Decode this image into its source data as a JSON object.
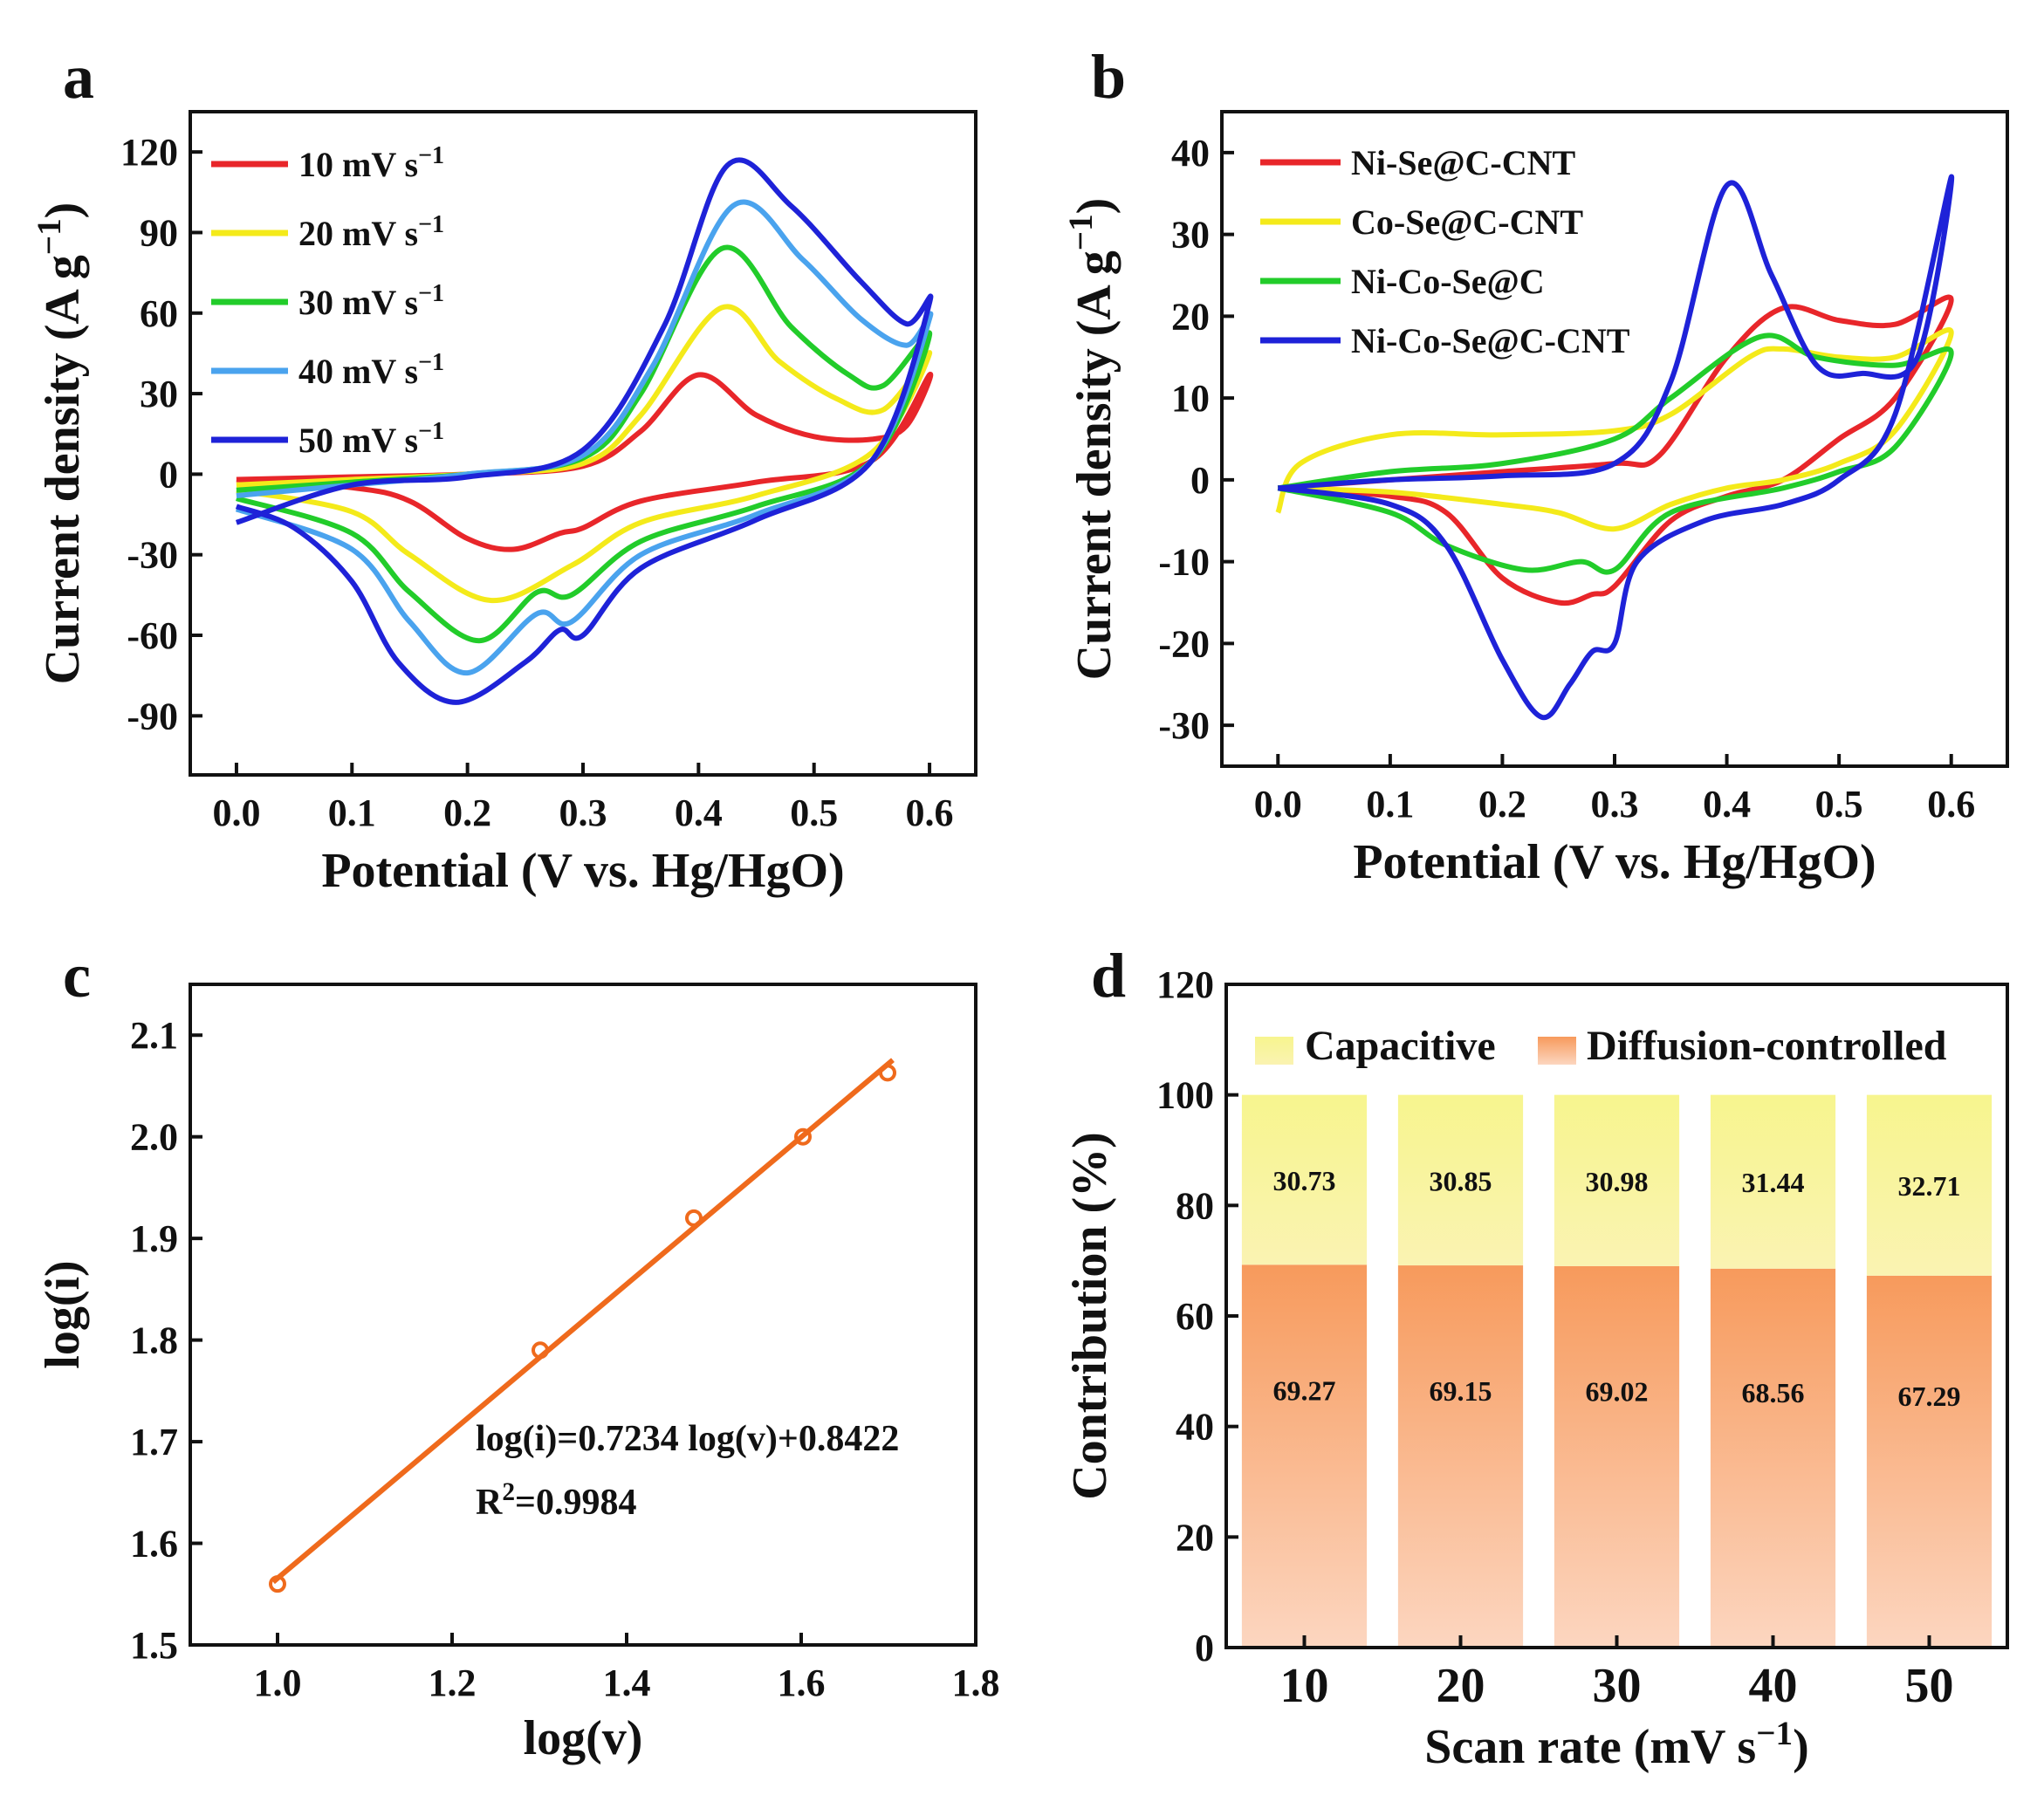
{
  "chart_data": [
    {
      "panel": "a",
      "type": "line",
      "xlabel": "Potential (V vs. Hg/HgO)",
      "ylabel_main": "Current density (A g",
      "ylabel_sup": "−1",
      "ylabel_close": ")",
      "xlim": [
        -0.04,
        0.64
      ],
      "ylim": [
        -112,
        135
      ],
      "xticks": [
        "0.0",
        "0.1",
        "0.2",
        "0.3",
        "0.4",
        "0.5",
        "0.6"
      ],
      "xtick_values": [
        0.0,
        0.1,
        0.2,
        0.3,
        0.4,
        0.5,
        0.6
      ],
      "yticks": [
        "120",
        "90",
        "60",
        "30",
        "0",
        "-30",
        "-60",
        "-90"
      ],
      "ytick_values": [
        120,
        90,
        60,
        30,
        0,
        -30,
        -60,
        -90
      ],
      "series": [
        {
          "name": "10 mV s",
          "sup": "−1",
          "color": "#e8262a",
          "upper": [
            [
              0,
              -2
            ],
            [
              0.1,
              -1
            ],
            [
              0.2,
              0
            ],
            [
              0.3,
              3
            ],
            [
              0.35,
              16
            ],
            [
              0.4,
              37
            ],
            [
              0.45,
              22
            ],
            [
              0.5,
              14
            ],
            [
              0.55,
              13
            ],
            [
              0.58,
              18
            ],
            [
              0.6,
              37
            ]
          ],
          "lower": [
            [
              0.6,
              37
            ],
            [
              0.55,
              5
            ],
            [
              0.45,
              -3
            ],
            [
              0.35,
              -10
            ],
            [
              0.3,
              -20
            ],
            [
              0.28,
              -22
            ],
            [
              0.24,
              -28
            ],
            [
              0.2,
              -24
            ],
            [
              0.15,
              -10
            ],
            [
              0.1,
              -5
            ],
            [
              0,
              -2
            ]
          ]
        },
        {
          "name": "20 mV s",
          "sup": "−1",
          "color": "#f4ea1a",
          "upper": [
            [
              0,
              -4
            ],
            [
              0.1,
              -2
            ],
            [
              0.2,
              0
            ],
            [
              0.3,
              4
            ],
            [
              0.35,
              22
            ],
            [
              0.42,
              62
            ],
            [
              0.47,
              42
            ],
            [
              0.52,
              28
            ],
            [
              0.56,
              24
            ],
            [
              0.6,
              45
            ]
          ],
          "lower": [
            [
              0.6,
              45
            ],
            [
              0.55,
              8
            ],
            [
              0.45,
              -8
            ],
            [
              0.35,
              -18
            ],
            [
              0.29,
              -34
            ],
            [
              0.22,
              -47
            ],
            [
              0.15,
              -30
            ],
            [
              0.1,
              -14
            ],
            [
              0,
              -6
            ]
          ]
        },
        {
          "name": "30 mV s",
          "sup": "−1",
          "color": "#22cc2a",
          "upper": [
            [
              0,
              -6
            ],
            [
              0.1,
              -3
            ],
            [
              0.2,
              0
            ],
            [
              0.3,
              6
            ],
            [
              0.35,
              30
            ],
            [
              0.42,
              84
            ],
            [
              0.48,
              55
            ],
            [
              0.53,
              37
            ],
            [
              0.56,
              33
            ],
            [
              0.6,
              52
            ]
          ],
          "lower": [
            [
              0.6,
              52
            ],
            [
              0.55,
              5
            ],
            [
              0.45,
              -12
            ],
            [
              0.35,
              -25
            ],
            [
              0.29,
              -45
            ],
            [
              0.26,
              -44
            ],
            [
              0.21,
              -62
            ],
            [
              0.15,
              -44
            ],
            [
              0.1,
              -22
            ],
            [
              0,
              -9
            ]
          ]
        },
        {
          "name": "40 mV s",
          "sup": "−1",
          "color": "#4aa3ee",
          "upper": [
            [
              0,
              -8
            ],
            [
              0.1,
              -4
            ],
            [
              0.2,
              0
            ],
            [
              0.3,
              7
            ],
            [
              0.36,
              40
            ],
            [
              0.43,
              100
            ],
            [
              0.49,
              80
            ],
            [
              0.54,
              58
            ],
            [
              0.58,
              48
            ],
            [
              0.6,
              58
            ]
          ],
          "lower": [
            [
              0.6,
              58
            ],
            [
              0.55,
              5
            ],
            [
              0.45,
              -15
            ],
            [
              0.35,
              -30
            ],
            [
              0.29,
              -55
            ],
            [
              0.26,
              -52
            ],
            [
              0.2,
              -74
            ],
            [
              0.15,
              -55
            ],
            [
              0.1,
              -28
            ],
            [
              0,
              -13
            ]
          ]
        },
        {
          "name": "50 mV s",
          "sup": "−1",
          "color": "#1e22d8",
          "upper": [
            [
              0,
              -18
            ],
            [
              0.1,
              -4
            ],
            [
              0.2,
              -1
            ],
            [
              0.3,
              9
            ],
            [
              0.37,
              55
            ],
            [
              0.425,
              115
            ],
            [
              0.48,
              100
            ],
            [
              0.54,
              72
            ],
            [
              0.58,
              56
            ],
            [
              0.6,
              64
            ]
          ],
          "lower": [
            [
              0.6,
              64
            ],
            [
              0.55,
              5
            ],
            [
              0.45,
              -17
            ],
            [
              0.35,
              -35
            ],
            [
              0.3,
              -60
            ],
            [
              0.28,
              -58
            ],
            [
              0.25,
              -70
            ],
            [
              0.19,
              -85
            ],
            [
              0.14,
              -70
            ],
            [
              0.1,
              -40
            ],
            [
              0.05,
              -20
            ],
            [
              0,
              -12
            ]
          ]
        }
      ]
    },
    {
      "panel": "b",
      "type": "line",
      "xlabel": "Potential (V vs. Hg/HgO)",
      "ylabel_main": "Current density (A g",
      "ylabel_sup": "−1",
      "ylabel_close": ")",
      "xlim": [
        -0.05,
        0.65
      ],
      "ylim": [
        -35,
        45
      ],
      "xticks": [
        "0.0",
        "0.1",
        "0.2",
        "0.3",
        "0.4",
        "0.5",
        "0.6"
      ],
      "xtick_values": [
        0.0,
        0.1,
        0.2,
        0.3,
        0.4,
        0.5,
        0.6
      ],
      "yticks": [
        "40",
        "30",
        "20",
        "10",
        "0",
        "-10",
        "-20",
        "-30"
      ],
      "ytick_values": [
        40,
        30,
        20,
        10,
        0,
        -10,
        -20,
        -30
      ],
      "series": [
        {
          "name": "Ni-Se@C-CNT",
          "color": "#e8262a",
          "upper": [
            [
              0,
              -1
            ],
            [
              0.1,
              0
            ],
            [
              0.2,
              1
            ],
            [
              0.3,
              2
            ],
            [
              0.34,
              3
            ],
            [
              0.4,
              15
            ],
            [
              0.45,
              21
            ],
            [
              0.5,
              19.5
            ],
            [
              0.55,
              19
            ],
            [
              0.6,
              22
            ]
          ],
          "lower": [
            [
              0.6,
              22
            ],
            [
              0.55,
              10
            ],
            [
              0.5,
              5
            ],
            [
              0.45,
              0
            ],
            [
              0.4,
              -2
            ],
            [
              0.35,
              -5
            ],
            [
              0.3,
              -13
            ],
            [
              0.28,
              -14
            ],
            [
              0.25,
              -15
            ],
            [
              0.2,
              -12
            ],
            [
              0.15,
              -4
            ],
            [
              0.1,
              -2
            ],
            [
              0,
              -1
            ]
          ]
        },
        {
          "name": "Co-Se@C-CNT",
          "color": "#f4ea1a",
          "upper": [
            [
              0,
              -4
            ],
            [
              0.02,
              2
            ],
            [
              0.1,
              5.5
            ],
            [
              0.2,
              5.5
            ],
            [
              0.3,
              6
            ],
            [
              0.35,
              8
            ],
            [
              0.42,
              15
            ],
            [
              0.45,
              16
            ],
            [
              0.5,
              15
            ],
            [
              0.55,
              15
            ],
            [
              0.6,
              18
            ]
          ],
          "lower": [
            [
              0.6,
              18
            ],
            [
              0.55,
              6
            ],
            [
              0.5,
              2
            ],
            [
              0.45,
              0
            ],
            [
              0.4,
              -1
            ],
            [
              0.35,
              -3
            ],
            [
              0.3,
              -6
            ],
            [
              0.25,
              -4
            ],
            [
              0.2,
              -3
            ],
            [
              0.1,
              -1.5
            ],
            [
              0,
              -1
            ]
          ]
        },
        {
          "name": "Ni-Co-Se@C",
          "color": "#22cc2a",
          "upper": [
            [
              0,
              -1
            ],
            [
              0.1,
              1
            ],
            [
              0.2,
              2
            ],
            [
              0.3,
              5
            ],
            [
              0.35,
              10
            ],
            [
              0.43,
              17.5
            ],
            [
              0.48,
              15
            ],
            [
              0.55,
              14
            ],
            [
              0.6,
              15.5
            ]
          ],
          "lower": [
            [
              0.6,
              15.5
            ],
            [
              0.55,
              4
            ],
            [
              0.5,
              1
            ],
            [
              0.45,
              -1
            ],
            [
              0.35,
              -4
            ],
            [
              0.3,
              -11
            ],
            [
              0.27,
              -10
            ],
            [
              0.22,
              -11
            ],
            [
              0.15,
              -8
            ],
            [
              0.1,
              -4
            ],
            [
              0,
              -1
            ]
          ]
        },
        {
          "name": "Ni-Co-Se@C-CNT",
          "color": "#1e22d8",
          "upper": [
            [
              0,
              -1
            ],
            [
              0.1,
              0
            ],
            [
              0.2,
              0.5
            ],
            [
              0.3,
              2
            ],
            [
              0.35,
              12
            ],
            [
              0.4,
              36
            ],
            [
              0.44,
              25
            ],
            [
              0.48,
              14
            ],
            [
              0.52,
              13
            ],
            [
              0.57,
              15
            ],
            [
              0.6,
              37
            ]
          ],
          "lower": [
            [
              0.6,
              37
            ],
            [
              0.55,
              8
            ],
            [
              0.5,
              0
            ],
            [
              0.45,
              -3
            ],
            [
              0.38,
              -5
            ],
            [
              0.32,
              -10
            ],
            [
              0.3,
              -20
            ],
            [
              0.28,
              -21
            ],
            [
              0.26,
              -25
            ],
            [
              0.235,
              -29
            ],
            [
              0.2,
              -22
            ],
            [
              0.15,
              -8
            ],
            [
              0.1,
              -3
            ],
            [
              0,
              -1
            ]
          ]
        }
      ]
    },
    {
      "panel": "c",
      "type": "scatter",
      "xlabel": "log(v)",
      "ylabel": "log(i)",
      "xlim": [
        0.9,
        1.8
      ],
      "ylim": [
        1.5,
        2.15
      ],
      "xticks": [
        "1.0",
        "1.2",
        "1.4",
        "1.6",
        "1.8"
      ],
      "xtick_values": [
        1.0,
        1.2,
        1.4,
        1.6,
        1.8
      ],
      "yticks": [
        "2.1",
        "2.0",
        "1.9",
        "1.8",
        "1.7",
        "1.6",
        "1.5"
      ],
      "ytick_values": [
        2.1,
        2.0,
        1.9,
        1.8,
        1.7,
        1.6,
        1.5
      ],
      "points": {
        "x": [
          1.0,
          1.301,
          1.477,
          1.602,
          1.699
        ],
        "y": [
          1.56,
          1.79,
          1.92,
          2.0,
          2.063
        ]
      },
      "fit": {
        "slope": 0.7234,
        "intercept": 0.8422,
        "x_range": [
          1.0,
          1.7
        ]
      },
      "color": "#ef6a1c",
      "equation": "log(i)=0.7234 log(v)+0.8422",
      "r2_main": "R",
      "r2_sup": "2",
      "r2_value": "=0.9984"
    },
    {
      "panel": "d",
      "type": "bar",
      "stacked": true,
      "xlabel_main": "Scan rate (mV s",
      "xlabel_sup": "−1",
      "xlabel_close": ")",
      "ylabel": "Contribution (%)",
      "ylim": [
        0,
        120
      ],
      "yticks": [
        "120",
        "100",
        "80",
        "60",
        "40",
        "20",
        "0"
      ],
      "ytick_values": [
        120,
        100,
        80,
        60,
        40,
        20,
        0
      ],
      "categories": [
        "10",
        "20",
        "30",
        "40",
        "50"
      ],
      "series": [
        {
          "name": "Diffusion-controlled",
          "values": [
            69.27,
            69.15,
            69.02,
            68.56,
            67.29
          ],
          "labels": [
            "69.27",
            "69.15",
            "69.02",
            "68.56",
            "67.29"
          ],
          "color_top": "#f79a5c",
          "color_bottom": "#fcd6c0"
        },
        {
          "name": "Capacitive",
          "values": [
            30.73,
            30.85,
            30.98,
            31.44,
            32.71
          ],
          "labels": [
            "30.73",
            "30.85",
            "30.98",
            "31.44",
            "32.71"
          ],
          "color_top": "#f7f58e",
          "color_bottom": "#faf3b2"
        }
      ],
      "legend_labels": [
        "Capacitive",
        "Diffusion-controlled"
      ]
    }
  ],
  "panel_labels": [
    "a",
    "b",
    "c",
    "d"
  ]
}
